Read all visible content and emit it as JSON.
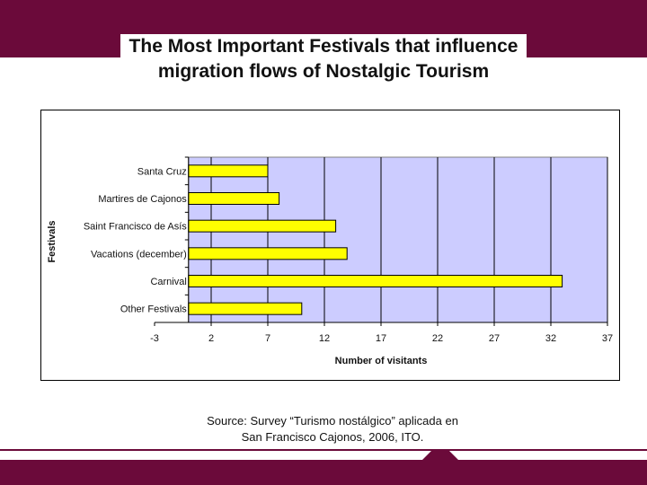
{
  "slide": {
    "title_line1": "The Most Important Festivals that influence",
    "title_line2": "migration flows of Nostalgic Tourism",
    "source_line1": "Source: Survey “Turismo nostálgico” aplicada en",
    "source_line2": "San Francisco Cajonos, 2006, ITO."
  },
  "colors": {
    "brand": "#6b0a3a",
    "plot_bg": "#ccccff",
    "bar_fill": "#ffff00",
    "bar_stroke": "#000000"
  },
  "chart_data": {
    "type": "bar",
    "orientation": "horizontal",
    "title": "",
    "xlabel": "Number of visitants",
    "ylabel": "Festivals",
    "categories": [
      "Santa Cruz",
      "Martires de Cajonos",
      "Saint Francisco de Asís",
      "Vacations (december)",
      "Carnival",
      "Other Festivals"
    ],
    "values": [
      7,
      8,
      13,
      14,
      33,
      10
    ],
    "xlim": [
      -3,
      37
    ],
    "xticks": [
      "-3",
      "2",
      "7",
      "12",
      "17",
      "22",
      "27",
      "32",
      "37"
    ],
    "grid": "vertical",
    "legend": "none"
  }
}
